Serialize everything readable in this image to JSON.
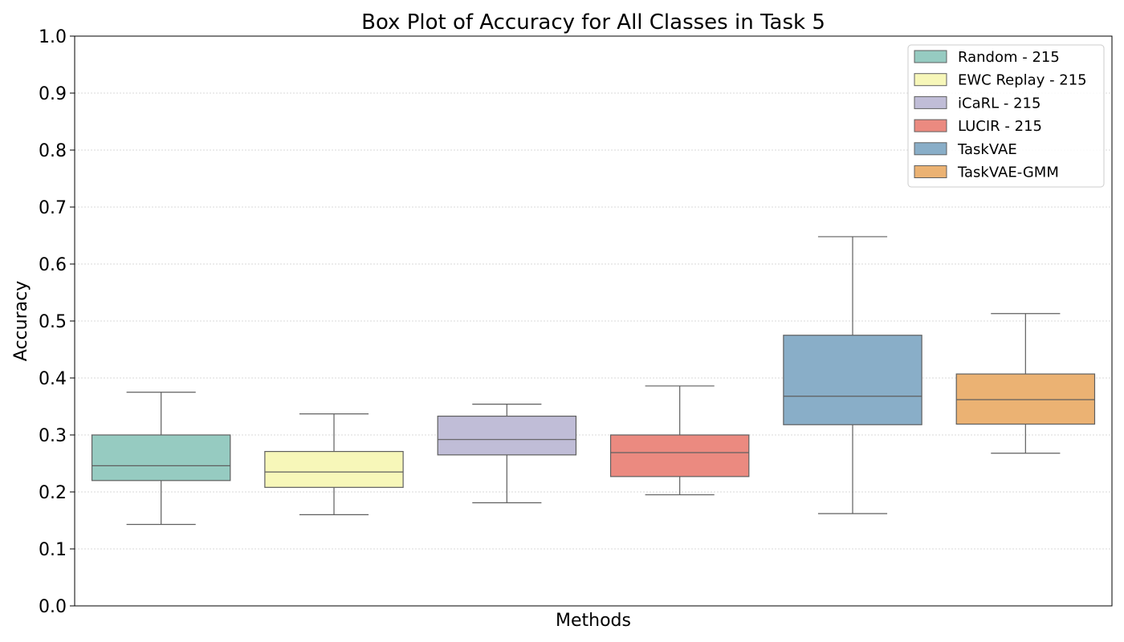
{
  "chart_data": {
    "type": "box",
    "title": "Box Plot of Accuracy for All Classes in Task 5",
    "xlabel": "Methods",
    "ylabel": "Accuracy",
    "ylim": [
      0.0,
      1.0
    ],
    "yticks": [
      "0.0",
      "0.1",
      "0.2",
      "0.3",
      "0.4",
      "0.5",
      "0.6",
      "0.7",
      "0.8",
      "0.9",
      "1.0"
    ],
    "grid": "horizontal dotted",
    "legend_position": "top-right",
    "series": [
      {
        "name": "Random - 215",
        "color": "#96cbc1",
        "whisker_low": 0.143,
        "q1": 0.22,
        "median": 0.246,
        "q3": 0.3,
        "whisker_high": 0.375
      },
      {
        "name": "EWC Replay - 215",
        "color": "#f7f7b9",
        "whisker_low": 0.16,
        "q1": 0.208,
        "median": 0.235,
        "q3": 0.271,
        "whisker_high": 0.337
      },
      {
        "name": "iCaRL - 215",
        "color": "#c0bdd7",
        "whisker_low": 0.181,
        "q1": 0.265,
        "median": 0.292,
        "q3": 0.333,
        "whisker_high": 0.354
      },
      {
        "name": "LUCIR - 215",
        "color": "#eb8a80",
        "whisker_low": 0.195,
        "q1": 0.227,
        "median": 0.269,
        "q3": 0.3,
        "whisker_high": 0.386
      },
      {
        "name": "TaskVAE",
        "color": "#89aec8",
        "whisker_low": 0.162,
        "q1": 0.318,
        "median": 0.368,
        "q3": 0.475,
        "whisker_high": 0.648
      },
      {
        "name": "TaskVAE-GMM",
        "color": "#ebb273",
        "whisker_low": 0.268,
        "q1": 0.319,
        "median": 0.362,
        "q3": 0.407,
        "whisker_high": 0.513
      }
    ]
  }
}
